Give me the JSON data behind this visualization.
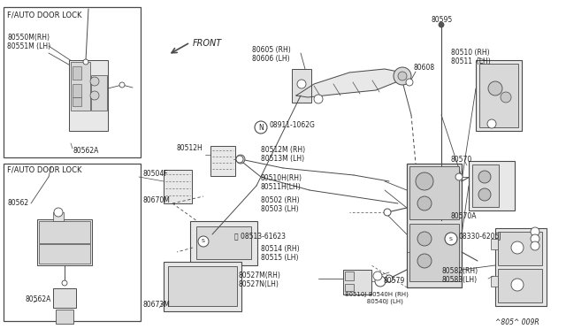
{
  "bg_color": "#ffffff",
  "lc": "#4a4a4a",
  "fig_w": 6.4,
  "fig_h": 3.72,
  "fig_code": "^805^ 009R",
  "box1_label": "F/AUTO DOOR LOCK",
  "box2_label": "F/AUTO DOOR LOCK",
  "label_80550": "80550M(RH)\n80551M (LH)",
  "label_80562a_1": "80562A",
  "label_80562": "80562",
  "label_80562a_2": "80562A",
  "label_80504f": "80504F",
  "label_80670m": "80670M",
  "label_80673m": "80673M",
  "label_80512h": "80512H",
  "label_80605": "80605 (RH)\n80606 (LH)",
  "label_N": "ℕ 08911-1062G",
  "label_80512m": "80512M (RH)\n80513M (LH)",
  "label_80510h": "80510H(RH)\n80511H(LH)",
  "label_80502": "80502 (RH)\n80503 (LH)",
  "label_S1": "Ⓢ 08513-61623",
  "label_80514": "80514 (RH)\n80515 (LH)",
  "label_80527": "80527M(RH)\n80527N(LH)",
  "label_80608": "80608",
  "label_80595": "80595",
  "label_80510": "80510 (RH)\n80511  (LH)",
  "label_80570": "80570",
  "label_80570a": "80570A",
  "label_S2": "Ⓢ 08330-6205J",
  "label_80582": "80582(RH)\n80583(LH)",
  "label_80579": "80579",
  "label_80540": "80510J 80540H (RH)\n           80540J (LH)",
  "label_front": "FRONT"
}
